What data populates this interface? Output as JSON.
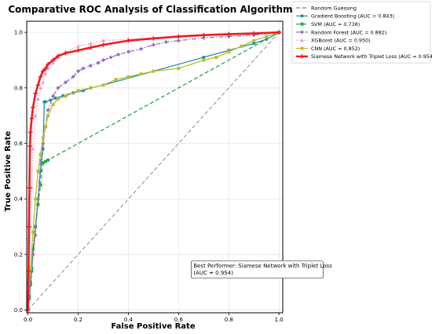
{
  "chart_data": {
    "type": "line",
    "title": "Comparative ROC Analysis of Classification Algorithms",
    "xlabel": "False Positive Rate",
    "ylabel": "True Positive Rate",
    "xlim": [
      0,
      1
    ],
    "ylim": [
      0,
      1
    ],
    "x_ticks": [
      "0.0",
      "0.2",
      "0.4",
      "0.6",
      "0.8",
      "1.0"
    ],
    "y_ticks": [
      "0.0",
      "0.2",
      "0.4",
      "0.6",
      "0.8",
      "1.0"
    ],
    "grid": true,
    "legend_position": "outside-right-top",
    "annotation": {
      "lines": [
        "Best Performer: Siamese Network with Triplet Loss",
        "(AUC = 0.954)"
      ],
      "x": 0.65,
      "y": 0.16
    },
    "series": [
      {
        "name": "Random Guessing",
        "color": "#808080",
        "style": "dashed",
        "marker": "none",
        "x": [
          0,
          1
        ],
        "y": [
          0,
          1
        ]
      },
      {
        "name": "Gradient Boosting (AUC = 0.843)",
        "color": "#1f8fa6",
        "style": "solid",
        "marker": "circle",
        "x": [
          0,
          0.005,
          0.01,
          0.015,
          0.02,
          0.03,
          0.04,
          0.05,
          0.06,
          0.065,
          0.07,
          0.09,
          0.11,
          0.14,
          0.18,
          0.22,
          0.25,
          0.3,
          0.5,
          0.7,
          0.8,
          0.9,
          0.95,
          1.0
        ],
        "y": [
          0,
          0.04,
          0.09,
          0.14,
          0.2,
          0.3,
          0.4,
          0.5,
          0.58,
          0.75,
          0.75,
          0.756,
          0.763,
          0.772,
          0.782,
          0.79,
          0.8,
          0.81,
          0.86,
          0.91,
          0.935,
          0.96,
          0.975,
          1.0
        ]
      },
      {
        "name": "SVM (AUC = 0.738)",
        "color": "#22a845",
        "style": "dashed",
        "marker": "square",
        "x": [
          0,
          0.005,
          0.01,
          0.015,
          0.02,
          0.03,
          0.04,
          0.05,
          0.06,
          0.07,
          0.08,
          1.0
        ],
        "y": [
          0,
          0.05,
          0.1,
          0.15,
          0.22,
          0.3,
          0.38,
          0.45,
          0.53,
          0.535,
          0.54,
          1.0
        ]
      },
      {
        "name": "Random Forest (AUC = 0.882)",
        "color": "#9b6fc4",
        "style": "dashdot",
        "marker": "diamond",
        "x": [
          0,
          0.01,
          0.02,
          0.03,
          0.04,
          0.05,
          0.06,
          0.07,
          0.08,
          0.1,
          0.12,
          0.15,
          0.18,
          0.2,
          0.22,
          0.25,
          0.28,
          0.3,
          0.33,
          0.36,
          0.4,
          0.45,
          0.5,
          0.55,
          0.6,
          0.7,
          0.8,
          0.9,
          1.0
        ],
        "y": [
          0,
          0.12,
          0.2,
          0.27,
          0.4,
          0.54,
          0.6,
          0.66,
          0.72,
          0.77,
          0.8,
          0.82,
          0.84,
          0.86,
          0.87,
          0.88,
          0.89,
          0.9,
          0.91,
          0.92,
          0.93,
          0.94,
          0.955,
          0.965,
          0.97,
          0.98,
          0.985,
          0.99,
          1.0
        ]
      },
      {
        "name": "XGBoost (AUC = 0.950)",
        "color": "#ee8fd0",
        "style": "dotted",
        "marker": "triangle",
        "x": [
          0,
          0.005,
          0.01,
          0.015,
          0.02,
          0.03,
          0.04,
          0.05,
          0.06,
          0.07,
          0.08,
          0.1,
          0.12,
          0.15,
          0.2,
          0.25,
          0.3,
          0.4,
          0.5,
          0.6,
          0.7,
          0.8,
          0.9,
          1.0
        ],
        "y": [
          0,
          0.15,
          0.3,
          0.44,
          0.58,
          0.7,
          0.76,
          0.8,
          0.82,
          0.85,
          0.87,
          0.89,
          0.91,
          0.93,
          0.95,
          0.96,
          0.97,
          0.975,
          0.98,
          0.985,
          0.99,
          0.995,
          0.997,
          1.0
        ]
      },
      {
        "name": "CNN (AUC = 0.852)",
        "color": "#bdbd2c",
        "style": "solid",
        "marker": "square",
        "x": [
          0,
          0.01,
          0.02,
          0.03,
          0.04,
          0.05,
          0.06,
          0.07,
          0.08,
          0.1,
          0.12,
          0.15,
          0.2,
          0.25,
          0.3,
          0.35,
          0.4,
          0.45,
          0.5,
          0.6,
          0.7,
          0.75,
          0.8,
          0.85,
          0.9,
          0.95,
          1.0
        ],
        "y": [
          0,
          0.15,
          0.28,
          0.4,
          0.5,
          0.56,
          0.62,
          0.66,
          0.7,
          0.74,
          0.76,
          0.77,
          0.79,
          0.8,
          0.81,
          0.83,
          0.84,
          0.85,
          0.86,
          0.87,
          0.9,
          0.91,
          0.93,
          0.95,
          0.97,
          0.985,
          1.0
        ]
      },
      {
        "name": "Siamese Network with Triplet Loss (AUC = 0.954)",
        "color": "#ee1c1c",
        "style": "solid",
        "marker": "plus",
        "bold": true,
        "x": [
          0,
          0.002,
          0.004,
          0.006,
          0.008,
          0.01,
          0.015,
          0.02,
          0.03,
          0.04,
          0.05,
          0.06,
          0.07,
          0.08,
          0.1,
          0.12,
          0.15,
          0.2,
          0.25,
          0.3,
          0.4,
          0.5,
          0.6,
          0.7,
          0.8,
          0.9,
          1.0
        ],
        "y": [
          0,
          0.14,
          0.3,
          0.44,
          0.59,
          0.64,
          0.69,
          0.73,
          0.78,
          0.81,
          0.84,
          0.86,
          0.87,
          0.885,
          0.9,
          0.915,
          0.925,
          0.935,
          0.945,
          0.955,
          0.97,
          0.978,
          0.985,
          0.99,
          0.993,
          0.996,
          1.0
        ]
      }
    ]
  }
}
